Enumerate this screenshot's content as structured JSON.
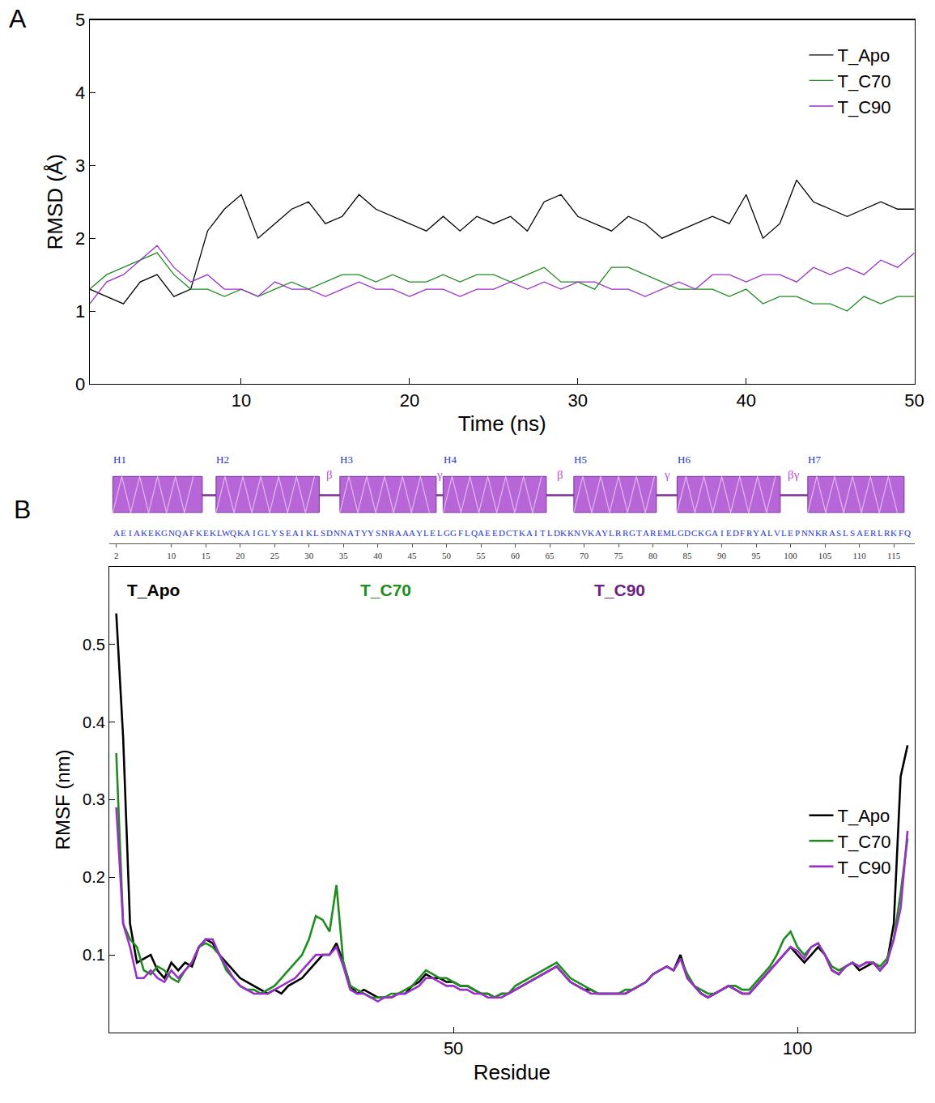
{
  "chart_data": [
    {
      "panel": "A",
      "type": "line",
      "xlabel": "Time (ns)",
      "ylabel": "RMSD (Å)",
      "x": [
        1,
        2,
        3,
        4,
        5,
        6,
        7,
        8,
        9,
        10,
        11,
        12,
        13,
        14,
        15,
        16,
        17,
        18,
        19,
        20,
        21,
        22,
        23,
        24,
        25,
        26,
        27,
        28,
        29,
        30,
        31,
        32,
        33,
        34,
        35,
        36,
        37,
        38,
        39,
        40,
        41,
        42,
        43,
        44,
        45,
        46,
        47,
        48,
        49,
        50
      ],
      "series": [
        {
          "name": "T_Apo",
          "color": "#000000",
          "values": [
            1.3,
            1.2,
            1.1,
            1.4,
            1.5,
            1.2,
            1.3,
            2.1,
            2.4,
            2.6,
            2.0,
            2.2,
            2.4,
            2.5,
            2.2,
            2.3,
            2.6,
            2.4,
            2.3,
            2.2,
            2.1,
            2.3,
            2.1,
            2.3,
            2.2,
            2.3,
            2.1,
            2.5,
            2.6,
            2.3,
            2.2,
            2.1,
            2.3,
            2.2,
            2.0,
            2.1,
            2.2,
            2.3,
            2.2,
            2.6,
            2.0,
            2.2,
            2.8,
            2.5,
            2.4,
            2.3,
            2.4,
            2.5,
            2.4,
            2.4
          ]
        },
        {
          "name": "T_C70",
          "color": "#1e8c1e",
          "values": [
            1.3,
            1.5,
            1.6,
            1.7,
            1.8,
            1.5,
            1.3,
            1.3,
            1.2,
            1.3,
            1.2,
            1.3,
            1.4,
            1.3,
            1.4,
            1.5,
            1.5,
            1.4,
            1.5,
            1.4,
            1.4,
            1.5,
            1.4,
            1.5,
            1.5,
            1.4,
            1.5,
            1.6,
            1.4,
            1.4,
            1.3,
            1.6,
            1.6,
            1.5,
            1.4,
            1.3,
            1.3,
            1.3,
            1.2,
            1.3,
            1.1,
            1.2,
            1.2,
            1.1,
            1.1,
            1.0,
            1.2,
            1.1,
            1.2,
            1.2
          ]
        },
        {
          "name": "T_C90",
          "color": "#9b30c8",
          "values": [
            1.1,
            1.4,
            1.5,
            1.7,
            1.9,
            1.6,
            1.4,
            1.5,
            1.3,
            1.3,
            1.2,
            1.4,
            1.3,
            1.3,
            1.2,
            1.3,
            1.4,
            1.3,
            1.3,
            1.2,
            1.3,
            1.3,
            1.2,
            1.3,
            1.3,
            1.4,
            1.3,
            1.4,
            1.3,
            1.4,
            1.4,
            1.3,
            1.3,
            1.2,
            1.3,
            1.4,
            1.3,
            1.5,
            1.5,
            1.4,
            1.5,
            1.5,
            1.4,
            1.6,
            1.5,
            1.6,
            1.5,
            1.7,
            1.6,
            1.8
          ]
        }
      ],
      "xlim": [
        1,
        50
      ],
      "xticks": [
        10,
        20,
        30,
        40,
        50
      ],
      "ylim": [
        0,
        5
      ],
      "yticks": [
        0,
        1,
        2,
        3,
        4,
        5
      ],
      "grid": false,
      "legend": "upper right"
    },
    {
      "panel": "B",
      "type": "line",
      "xlabel": "Residue",
      "ylabel": "RMSF (nm)",
      "x": [
        1,
        2,
        3,
        4,
        5,
        6,
        7,
        8,
        9,
        10,
        11,
        12,
        13,
        14,
        15,
        16,
        17,
        18,
        19,
        20,
        21,
        22,
        23,
        24,
        25,
        26,
        27,
        28,
        29,
        30,
        31,
        32,
        33,
        34,
        35,
        36,
        37,
        38,
        39,
        40,
        41,
        42,
        43,
        44,
        45,
        46,
        47,
        48,
        49,
        50,
        51,
        52,
        53,
        54,
        55,
        56,
        57,
        58,
        59,
        60,
        61,
        62,
        63,
        64,
        65,
        66,
        67,
        68,
        69,
        70,
        71,
        72,
        73,
        74,
        75,
        76,
        77,
        78,
        79,
        80,
        81,
        82,
        83,
        84,
        85,
        86,
        87,
        88,
        89,
        90,
        91,
        92,
        93,
        94,
        95,
        96,
        97,
        98,
        99,
        100,
        101,
        102,
        103,
        104,
        105,
        106,
        107,
        108,
        109,
        110,
        111,
        112,
        113,
        114,
        115,
        116
      ],
      "series": [
        {
          "name": "T_Apo",
          "color": "#000000",
          "values": [
            0.54,
            0.38,
            0.14,
            0.09,
            0.095,
            0.1,
            0.08,
            0.07,
            0.09,
            0.08,
            0.09,
            0.085,
            0.11,
            0.12,
            0.115,
            0.1,
            0.09,
            0.08,
            0.07,
            0.065,
            0.06,
            0.055,
            0.05,
            0.055,
            0.05,
            0.06,
            0.065,
            0.07,
            0.08,
            0.09,
            0.1,
            0.1,
            0.115,
            0.09,
            0.06,
            0.05,
            0.055,
            0.05,
            0.045,
            0.045,
            0.045,
            0.05,
            0.05,
            0.06,
            0.065,
            0.075,
            0.07,
            0.07,
            0.065,
            0.065,
            0.06,
            0.06,
            0.055,
            0.05,
            0.05,
            0.045,
            0.05,
            0.05,
            0.055,
            0.06,
            0.065,
            0.07,
            0.075,
            0.08,
            0.085,
            0.075,
            0.065,
            0.06,
            0.055,
            0.055,
            0.05,
            0.05,
            0.05,
            0.05,
            0.05,
            0.055,
            0.06,
            0.065,
            0.075,
            0.08,
            0.085,
            0.08,
            0.1,
            0.07,
            0.06,
            0.05,
            0.045,
            0.05,
            0.055,
            0.06,
            0.055,
            0.05,
            0.05,
            0.06,
            0.07,
            0.08,
            0.09,
            0.1,
            0.11,
            0.1,
            0.09,
            0.1,
            0.11,
            0.1,
            0.08,
            0.075,
            0.085,
            0.09,
            0.08,
            0.085,
            0.09,
            0.08,
            0.09,
            0.14,
            0.33,
            0.37
          ]
        },
        {
          "name": "T_C70",
          "color": "#1e8c1e",
          "values": [
            0.36,
            0.14,
            0.12,
            0.11,
            0.08,
            0.075,
            0.085,
            0.08,
            0.07,
            0.065,
            0.08,
            0.09,
            0.11,
            0.115,
            0.11,
            0.1,
            0.08,
            0.07,
            0.06,
            0.055,
            0.055,
            0.05,
            0.055,
            0.06,
            0.07,
            0.08,
            0.09,
            0.1,
            0.12,
            0.15,
            0.145,
            0.13,
            0.19,
            0.09,
            0.06,
            0.055,
            0.05,
            0.045,
            0.045,
            0.045,
            0.05,
            0.05,
            0.055,
            0.06,
            0.07,
            0.08,
            0.075,
            0.07,
            0.07,
            0.065,
            0.06,
            0.06,
            0.055,
            0.05,
            0.05,
            0.045,
            0.05,
            0.05,
            0.06,
            0.065,
            0.07,
            0.075,
            0.08,
            0.085,
            0.09,
            0.08,
            0.07,
            0.065,
            0.06,
            0.055,
            0.05,
            0.05,
            0.05,
            0.05,
            0.055,
            0.055,
            0.06,
            0.065,
            0.075,
            0.08,
            0.085,
            0.08,
            0.095,
            0.075,
            0.06,
            0.055,
            0.05,
            0.05,
            0.055,
            0.06,
            0.06,
            0.055,
            0.055,
            0.065,
            0.075,
            0.085,
            0.1,
            0.12,
            0.13,
            0.11,
            0.1,
            0.11,
            0.115,
            0.1,
            0.085,
            0.08,
            0.085,
            0.09,
            0.085,
            0.09,
            0.09,
            0.085,
            0.095,
            0.12,
            0.18,
            0.25
          ]
        },
        {
          "name": "T_C90",
          "color": "#9b30c8",
          "values": [
            0.29,
            0.14,
            0.11,
            0.07,
            0.07,
            0.08,
            0.07,
            0.065,
            0.08,
            0.07,
            0.08,
            0.09,
            0.11,
            0.12,
            0.12,
            0.1,
            0.085,
            0.07,
            0.06,
            0.055,
            0.05,
            0.05,
            0.05,
            0.055,
            0.06,
            0.065,
            0.07,
            0.08,
            0.09,
            0.1,
            0.1,
            0.1,
            0.11,
            0.085,
            0.055,
            0.05,
            0.05,
            0.045,
            0.04,
            0.045,
            0.045,
            0.05,
            0.05,
            0.055,
            0.06,
            0.07,
            0.07,
            0.065,
            0.06,
            0.06,
            0.055,
            0.055,
            0.05,
            0.05,
            0.045,
            0.045,
            0.045,
            0.05,
            0.055,
            0.06,
            0.065,
            0.07,
            0.075,
            0.08,
            0.085,
            0.075,
            0.065,
            0.06,
            0.055,
            0.05,
            0.05,
            0.05,
            0.05,
            0.05,
            0.05,
            0.055,
            0.06,
            0.065,
            0.075,
            0.08,
            0.085,
            0.08,
            0.095,
            0.07,
            0.06,
            0.05,
            0.045,
            0.05,
            0.055,
            0.06,
            0.055,
            0.05,
            0.05,
            0.06,
            0.07,
            0.08,
            0.09,
            0.1,
            0.11,
            0.105,
            0.095,
            0.11,
            0.115,
            0.1,
            0.08,
            0.075,
            0.085,
            0.09,
            0.085,
            0.09,
            0.09,
            0.08,
            0.09,
            0.12,
            0.16,
            0.26
          ]
        }
      ],
      "xlim": [
        0,
        117
      ],
      "xticks": [
        50,
        100
      ],
      "ylim": [
        0,
        0.6
      ],
      "yticks": [
        0.1,
        0.2,
        0.3,
        0.4,
        0.5
      ],
      "grid": false,
      "legend": "lower right",
      "annotations": [
        {
          "text": "T_Apo",
          "color": "#000000"
        },
        {
          "text": "T_C70",
          "color": "#1e8c1e"
        },
        {
          "text": "T_C90",
          "color": "#6e1f82"
        }
      ],
      "secondary_structure": {
        "sequence": "AEIAKEKGNQAFKEKLWQKAIGLYSEAIKLSDNNATYYSNRAAAYLELGGFLQAEEDCTKAITLDKKNVKAYLRRGTAREMLGDCKGAIEDFRYALVLEPNNKRASLSAERLRKFQ",
        "sequence_start": 2,
        "xlim": [
          1,
          118
        ],
        "xticks": [
          2,
          10,
          15,
          20,
          25,
          30,
          35,
          40,
          45,
          50,
          55,
          60,
          65,
          70,
          75,
          80,
          85,
          90,
          95,
          100,
          105,
          110,
          115
        ],
        "helices": [
          {
            "label": "H1",
            "start": 2,
            "end": 14
          },
          {
            "label": "H2",
            "start": 17,
            "end": 31
          },
          {
            "label": "H3",
            "start": 35,
            "end": 48
          },
          {
            "label": "H4",
            "start": 50,
            "end": 64
          },
          {
            "label": "H5",
            "start": 69,
            "end": 80
          },
          {
            "label": "H6",
            "start": 84,
            "end": 98
          },
          {
            "label": "H7",
            "start": 103,
            "end": 116
          }
        ],
        "loops": [
          {
            "label": "β",
            "x": 33
          },
          {
            "label": "γ",
            "x": 49
          },
          {
            "label": "β",
            "x": 66.5
          },
          {
            "label": "γ",
            "x": 82
          },
          {
            "label": "βγ",
            "x": 100.5
          }
        ]
      }
    }
  ]
}
